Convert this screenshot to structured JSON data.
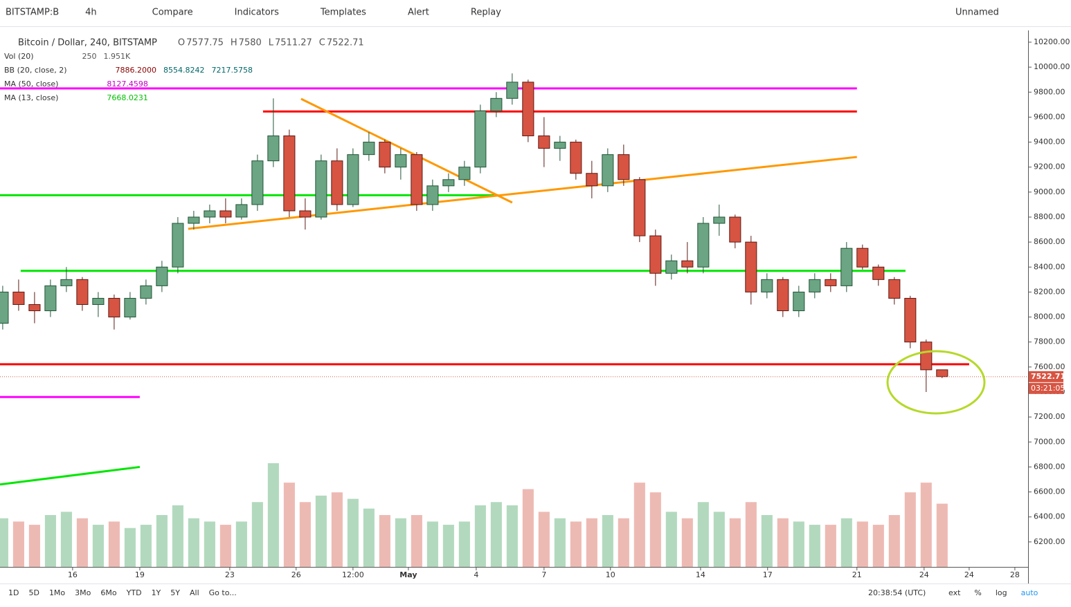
{
  "toolbar": {
    "symbol": "BITSTAMP:B",
    "interval": "4h",
    "items": [
      "Compare",
      "Indicators",
      "Templates",
      "Alert",
      "Replay"
    ],
    "layout": "Unnamed"
  },
  "legend": {
    "main": "Bitcoin / Dollar, 240, BITSTAMP",
    "ohlc_letters": [
      "O",
      "H",
      "L",
      "C"
    ],
    "indicators": [
      {
        "name": "Vol (20)",
        "values": [
          "250",
          "1.951K"
        ]
      },
      {
        "name": "BB (20, close, 2)",
        "values": [
          "7886.2000",
          "8554.8242",
          "7217.5758"
        ]
      },
      {
        "name": "MA (50, close)",
        "values": [
          "8127.4598"
        ]
      },
      {
        "name": "MA (13, close)",
        "values": [
          "7668.0231"
        ]
      }
    ]
  },
  "countdown": "03:21:05",
  "bottom_bar": {
    "ranges": [
      "1D",
      "5D",
      "1Mo",
      "3Mo",
      "6Mo",
      "YTD",
      "1Y",
      "5Y",
      "All"
    ],
    "goto": "Go to...",
    "time": "20:38:54 (UTC)",
    "options": [
      "ext",
      "%",
      "log",
      "auto"
    ]
  },
  "chart_data": {
    "type": "candlestick",
    "colors": {
      "up": "#6ba583",
      "down": "#d75442",
      "volume_up": "#9fcfae",
      "volume_down": "#e8a9a0"
    },
    "xlim": [
      -0.17,
      64.4
    ],
    "xticks": [
      {
        "value": 4.39,
        "label": "16"
      },
      {
        "value": 8.61,
        "label": "19"
      },
      {
        "value": 14.26,
        "label": "23"
      },
      {
        "value": 18.43,
        "label": "26"
      },
      {
        "value": 22,
        "label": "12:00"
      },
      {
        "value": 25.48,
        "label": "May"
      },
      {
        "value": 29.74,
        "label": "4"
      },
      {
        "value": 34,
        "label": "7"
      },
      {
        "value": 38.17,
        "label": "10"
      },
      {
        "value": 43.83,
        "label": "14"
      },
      {
        "value": 48.04,
        "label": "17"
      },
      {
        "value": 53.65,
        "label": "21"
      },
      {
        "value": 57.87,
        "label": "24"
      },
      {
        "value": 60.7,
        "label": "24"
      },
      {
        "value": 63.57,
        "label": "28"
      }
    ],
    "ylim": [
      6000,
      10294
    ],
    "yticks": [
      {
        "value": 6200,
        "label": "6200.00"
      },
      {
        "value": 6400,
        "label": "6400.00"
      },
      {
        "value": 6600,
        "label": "6600.00"
      },
      {
        "value": 6800,
        "label": "6800.00"
      },
      {
        "value": 7000,
        "label": "7000.00"
      },
      {
        "value": 7200,
        "label": "7200.00"
      },
      {
        "value": 7400,
        "label": "7400.00"
      },
      {
        "value": 7600,
        "label": "7600.00"
      },
      {
        "value": 7800,
        "label": "7800.00"
      },
      {
        "value": 8000,
        "label": "8000.00"
      },
      {
        "value": 8200,
        "label": "8200.00"
      },
      {
        "value": 8400,
        "label": "8400.00"
      },
      {
        "value": 8600,
        "label": "8600.00"
      },
      {
        "value": 8800,
        "label": "8800.00"
      },
      {
        "value": 9000,
        "label": "9000.00"
      },
      {
        "value": 9200,
        "label": "9200.00"
      },
      {
        "value": 9400,
        "label": "9400.00"
      },
      {
        "value": 9600,
        "label": "9600.00"
      },
      {
        "value": 9800,
        "label": "9800.00"
      },
      {
        "value": 10000,
        "label": "10000.00"
      },
      {
        "value": 10200,
        "label": "10200.00"
      }
    ],
    "candles": {
      "open": [
        7950,
        8200,
        8100,
        8050,
        8250,
        8300,
        8100,
        8150,
        8000,
        8150,
        8250,
        8400,
        8750,
        8800,
        8850,
        8800,
        8900,
        9250,
        9450,
        8850,
        8800,
        9250,
        8900,
        9300,
        9400,
        9200,
        9300,
        8900,
        9050,
        9100,
        9200,
        9650,
        9750,
        9880,
        9450,
        9350,
        9400,
        9150,
        9050,
        9300,
        9100,
        8650,
        8350,
        8450,
        8400,
        8750,
        8800,
        8600,
        8200,
        8300,
        8050,
        8200,
        8300,
        8250,
        8550,
        8400,
        8300,
        8150,
        7800,
        7577.75
      ],
      "high": [
        8250,
        8300,
        8200,
        8300,
        8400,
        8320,
        8200,
        8180,
        8200,
        8300,
        8450,
        8800,
        8850,
        8900,
        8950,
        8950,
        9300,
        9750,
        9500,
        8950,
        9300,
        9350,
        9350,
        9480,
        9420,
        9350,
        9320,
        9100,
        9150,
        9250,
        9700,
        9800,
        9950,
        9900,
        9600,
        9450,
        9420,
        9250,
        9350,
        9380,
        9120,
        8700,
        8500,
        8600,
        8800,
        8900,
        8820,
        8650,
        8350,
        8320,
        8250,
        8350,
        8350,
        8600,
        8580,
        8420,
        8320,
        8170,
        7820,
        7580
      ],
      "low": [
        7900,
        8050,
        7950,
        8000,
        8200,
        8050,
        8000,
        7900,
        7980,
        8100,
        8200,
        8350,
        8700,
        8750,
        8750,
        8780,
        8850,
        9200,
        8800,
        8700,
        8780,
        8850,
        8880,
        9250,
        9150,
        9100,
        8850,
        8850,
        9000,
        9050,
        9150,
        9600,
        9700,
        9400,
        9200,
        9250,
        9100,
        8950,
        9000,
        9050,
        8600,
        8250,
        8300,
        8350,
        8350,
        8650,
        8550,
        8100,
        8150,
        8000,
        8000,
        8150,
        8200,
        8200,
        8380,
        8250,
        8100,
        7750,
        7400,
        7511.27
      ],
      "close": [
        8200,
        8100,
        8050,
        8250,
        8300,
        8100,
        8150,
        8000,
        8150,
        8250,
        8400,
        8750,
        8800,
        8850,
        8800,
        8900,
        9250,
        9450,
        8850,
        8800,
        9250,
        8900,
        9300,
        9400,
        9200,
        9300,
        8900,
        9050,
        9100,
        9200,
        9650,
        9750,
        9880,
        9450,
        9350,
        9400,
        9150,
        9050,
        9300,
        9100,
        8650,
        8350,
        8450,
        8400,
        8750,
        8800,
        8600,
        8200,
        8300,
        8050,
        8200,
        8300,
        8250,
        8550,
        8400,
        8300,
        8150,
        7800,
        7577.75,
        7522.71
      ]
    },
    "volume": [
      1500,
      1400,
      1300,
      1600,
      1700,
      1500,
      1300,
      1400,
      1200,
      1300,
      1600,
      1900,
      1500,
      1400,
      1300,
      1400,
      2000,
      3200,
      2600,
      2000,
      2200,
      2300,
      2100,
      1800,
      1600,
      1500,
      1600,
      1400,
      1300,
      1400,
      1900,
      2000,
      1900,
      2400,
      1700,
      1500,
      1400,
      1500,
      1600,
      1500,
      2600,
      2300,
      1700,
      1500,
      2000,
      1700,
      1500,
      2000,
      1600,
      1500,
      1400,
      1300,
      1300,
      1500,
      1400,
      1300,
      1600,
      2300,
      2600,
      1951
    ],
    "lines": [
      {
        "color": "#ff00ff",
        "points": [
          [
            -0.17,
            9830
          ],
          [
            53.65,
            9830
          ]
        ]
      },
      {
        "color": "#ff0000",
        "points": [
          [
            16.35,
            9645
          ],
          [
            53.65,
            9645
          ]
        ]
      },
      {
        "color": "#00e600",
        "points": [
          [
            -0.17,
            8975
          ],
          [
            31.13,
            8975
          ]
        ]
      },
      {
        "color": "#00e600",
        "points": [
          [
            1.13,
            8370
          ],
          [
            56.7,
            8370
          ]
        ]
      },
      {
        "color": "#ff0000",
        "points": [
          [
            -0.17,
            7622
          ],
          [
            60.7,
            7622
          ]
        ]
      },
      {
        "color": "#ff00ff",
        "points": [
          [
            -0.17,
            7360
          ],
          [
            8.61,
            7360
          ]
        ]
      },
      {
        "color": "#00e600",
        "points": [
          [
            -0.17,
            6660
          ],
          [
            8.61,
            6800
          ]
        ]
      },
      {
        "color": "#ff9800",
        "points": [
          [
            18.74,
            9746
          ],
          [
            32,
            8916
          ]
        ]
      },
      {
        "color": "#ff9800",
        "points": [
          [
            11.65,
            8706
          ],
          [
            53.65,
            9281
          ]
        ]
      }
    ]
  }
}
